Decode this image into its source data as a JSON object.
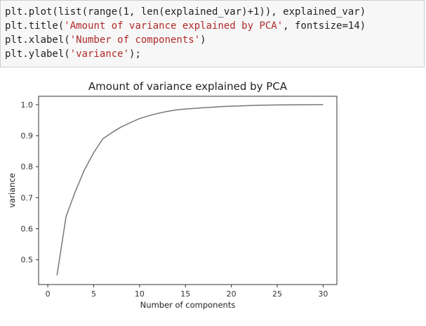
{
  "code": {
    "lines": [
      [
        {
          "t": "plt.plot(list(range(1, len(explained_var)+1)), explained_var)",
          "c": "n"
        }
      ],
      [
        {
          "t": "plt.title(",
          "c": "n"
        },
        {
          "t": "'Amount of variance explained by PCA'",
          "c": "s"
        },
        {
          "t": ", fontsize=14)",
          "c": "n"
        }
      ],
      [
        {
          "t": "plt.xlabel(",
          "c": "n"
        },
        {
          "t": "'Number of components'",
          "c": "s"
        },
        {
          "t": ")",
          "c": "n"
        }
      ],
      [
        {
          "t": "plt.ylabel(",
          "c": "n"
        },
        {
          "t": "'variance'",
          "c": "s"
        },
        {
          "t": ");",
          "c": "n"
        }
      ]
    ]
  },
  "chart_data": {
    "type": "line",
    "title": "Amount of variance explained by PCA",
    "xlabel": "Number of components",
    "ylabel": "variance",
    "x": [
      1,
      2,
      3,
      4,
      5,
      6,
      7,
      8,
      9,
      10,
      11,
      12,
      13,
      14,
      15,
      16,
      17,
      18,
      19,
      20,
      21,
      22,
      23,
      24,
      25,
      26,
      27,
      28,
      29,
      30
    ],
    "series": [
      {
        "values": [
          0.45,
          0.64,
          0.72,
          0.79,
          0.845,
          0.89,
          0.91,
          0.928,
          0.942,
          0.955,
          0.964,
          0.972,
          0.978,
          0.983,
          0.986,
          0.988,
          0.99,
          0.992,
          0.994,
          0.995,
          0.996,
          0.997,
          0.998,
          0.9985,
          0.999,
          0.9993,
          0.9995,
          0.9997,
          0.9998,
          1.0
        ],
        "color": "#777777"
      }
    ],
    "xlim": [
      -1,
      31.5
    ],
    "ylim": [
      0.42,
      1.027
    ],
    "xticks": [
      0,
      5,
      10,
      15,
      20,
      25,
      30
    ],
    "yticks": [
      0.5,
      0.6,
      0.7,
      0.8,
      0.9,
      1.0
    ],
    "grid": false,
    "legend": "none"
  }
}
